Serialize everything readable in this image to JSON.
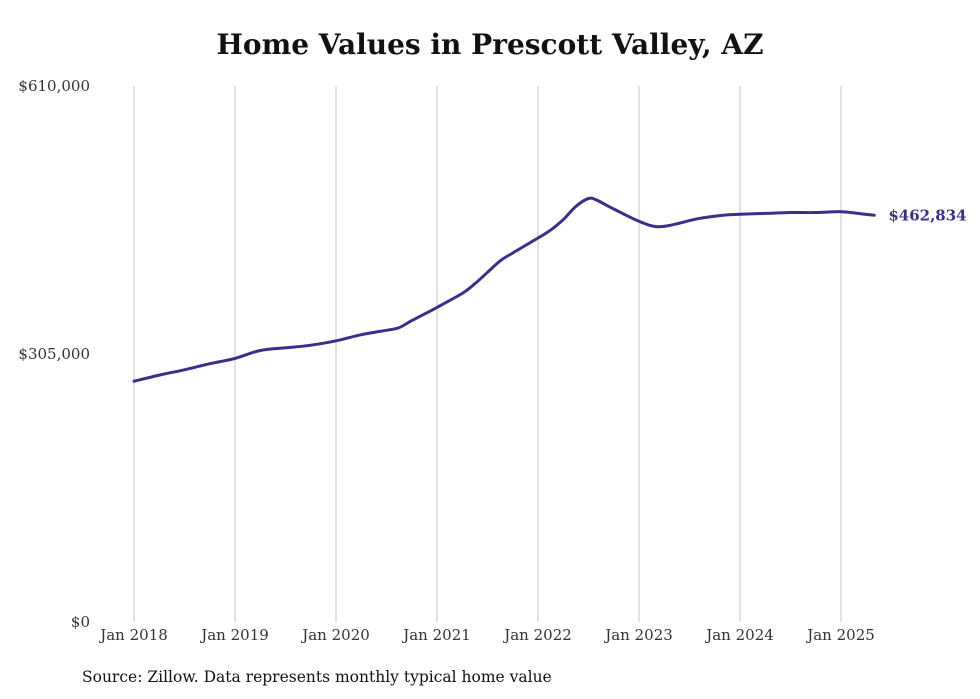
{
  "chart_data": {
    "type": "line",
    "title": "Home Values in Prescott Valley, AZ",
    "source": "Source: Zillow. Data represents monthly typical home value",
    "xlabel": "",
    "ylabel": "",
    "ylim": [
      0,
      610000
    ],
    "y_ticks": [
      {
        "value": 0,
        "label": "$0"
      },
      {
        "value": 305000,
        "label": "$305,000"
      },
      {
        "value": 610000,
        "label": "$610,000"
      }
    ],
    "x_ticks": [
      {
        "value": 2018,
        "label": "Jan 2018"
      },
      {
        "value": 2019,
        "label": "Jan 2019"
      },
      {
        "value": 2020,
        "label": "Jan 2020"
      },
      {
        "value": 2021,
        "label": "Jan 2021"
      },
      {
        "value": 2022,
        "label": "Jan 2022"
      },
      {
        "value": 2023,
        "label": "Jan 2023"
      },
      {
        "value": 2024,
        "label": "Jan 2024"
      },
      {
        "value": 2025,
        "label": "Jan 2025"
      }
    ],
    "grid": {
      "vertical": true,
      "horizontal": false
    },
    "line_color": "#3a2f8a",
    "end_label": "$462,834",
    "series": [
      {
        "x": [
          2018.0,
          2018.25,
          2018.5,
          2018.75,
          2019.0,
          2019.25,
          2019.5,
          2019.75,
          2020.0,
          2020.25,
          2020.5,
          2020.625,
          2020.75,
          2021.0,
          2021.25,
          2021.375,
          2021.5,
          2021.625,
          2021.75,
          2022.0,
          2022.125,
          2022.25,
          2022.375,
          2022.5,
          2022.583,
          2022.75,
          2023.0,
          2023.167,
          2023.333,
          2023.583,
          2023.833,
          2024.0,
          2024.25,
          2024.5,
          2024.75,
          2025.0,
          2025.167,
          2025.33
        ],
        "y": [
          274000,
          281000,
          287000,
          294000,
          300000,
          309000,
          312000,
          315000,
          320000,
          327000,
          332000,
          335000,
          343000,
          358000,
          374000,
          385000,
          398000,
          411000,
          420000,
          437000,
          446000,
          458000,
          473000,
          482000,
          480000,
          470000,
          456000,
          450000,
          452000,
          459000,
          463000,
          464000,
          465000,
          466000,
          466000,
          467000,
          465000,
          462834
        ]
      }
    ]
  }
}
